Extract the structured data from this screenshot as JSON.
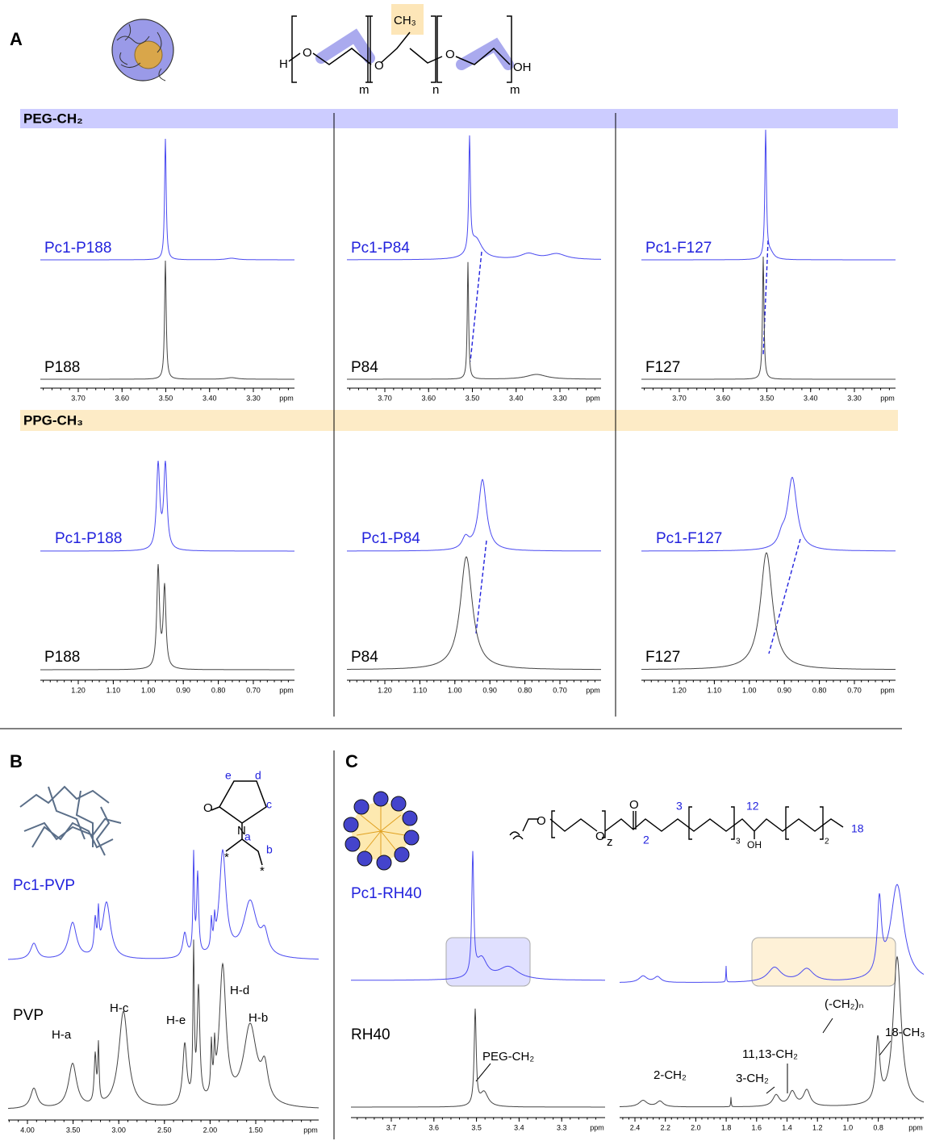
{
  "panel_a": {
    "label": "A",
    "structure": {
      "h": "H",
      "o1": "O",
      "o2": "O",
      "o3": "O",
      "oh": "OH",
      "ch3": "CH₃",
      "m1": "m",
      "n": "n",
      "m2": "m"
    },
    "sections": [
      {
        "title": "PEG-CH₂",
        "ticks": [
          "3.70",
          "3.60",
          "3.50",
          "3.40",
          "3.30"
        ],
        "unit": "ppm",
        "columns": [
          {
            "top": "Pc1-P188",
            "bottom": "P188"
          },
          {
            "top": "Pc1-P84",
            "bottom": "P84"
          },
          {
            "top": "Pc1-F127",
            "bottom": "F127"
          }
        ]
      },
      {
        "title": "PPG-CH₃",
        "ticks": [
          "1.20",
          "1.10",
          "1.00",
          "0.90",
          "0.80",
          "0.70"
        ],
        "unit": "ppm",
        "columns": [
          {
            "top": "Pc1-P188",
            "bottom": "P188"
          },
          {
            "top": "Pc1-P84",
            "bottom": "P84"
          },
          {
            "top": "Pc1-F127",
            "bottom": "F127"
          }
        ]
      }
    ]
  },
  "panel_b": {
    "label": "B",
    "structure": {
      "e": "e",
      "d": "d",
      "c": "c",
      "a": "a",
      "b": "b",
      "o": "O",
      "n": "N",
      "star1": "*",
      "star2": "*"
    },
    "top": "Pc1-PVP",
    "bottom": "PVP",
    "peaks": [
      "H-a",
      "H-c",
      "H-e",
      "H-d",
      "H-b"
    ],
    "ticks": [
      "4.00",
      "3.50",
      "3.00",
      "2.50",
      "2.00",
      "1.50"
    ],
    "unit": "ppm"
  },
  "panel_c": {
    "label": "C",
    "structure": {
      "o1": "O",
      "o2": "O",
      "z": "z",
      "o3": "O",
      "c2": "2",
      "c3": "3",
      "sub3": "3",
      "c12": "12",
      "oh": "OH",
      "sub2": "2",
      "c18": "18"
    },
    "top": "Pc1-RH40",
    "bottom": "RH40",
    "left": {
      "peaks": [
        "PEG-CH₂"
      ],
      "ticks": [
        "3.7",
        "3.6",
        "3.5",
        "3.4",
        "3.3"
      ],
      "unit": "ppm"
    },
    "right": {
      "peaks": [
        "2-CH₂",
        "3-CH₂",
        "11,13-CH₂",
        "(-CH₂)ₙ",
        "18-CH₃"
      ],
      "ticks": [
        "2.4",
        "2.2",
        "2.0",
        "1.8",
        "1.6",
        "1.4",
        "1.2",
        "1.0",
        "0.8"
      ],
      "unit": "ppm"
    }
  }
}
